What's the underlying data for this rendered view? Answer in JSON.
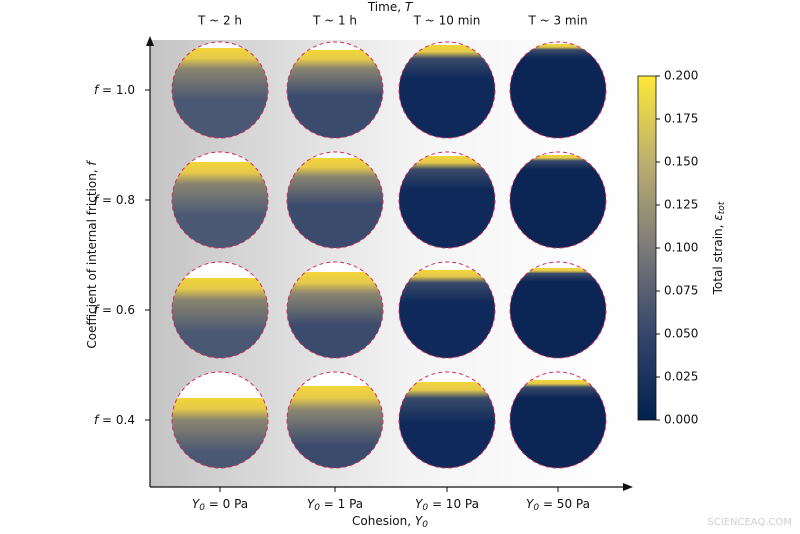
{
  "figure": {
    "top_title": {
      "name": "Time, ",
      "symbol": "T"
    },
    "columns": [
      {
        "time": "T ~ 2 h",
        "symbol": "Y",
        "subscript": "0",
        "label": " = 0 Pa"
      },
      {
        "time": "T ~ 1 h",
        "symbol": "Y",
        "subscript": "0",
        "label": " = 1 Pa"
      },
      {
        "time": "T ~ 10 min",
        "symbol": "Y",
        "subscript": "0",
        "label": " = 10 Pa"
      },
      {
        "time": "T ~ 3 min",
        "symbol": "Y",
        "subscript": "0",
        "label": " = 50 Pa"
      }
    ],
    "rows": [
      {
        "symbol": "f",
        "label": " = 1.0"
      },
      {
        "symbol": "f",
        "label": " = 0.8"
      },
      {
        "symbol": "f",
        "label": " = 0.6"
      },
      {
        "symbol": "f",
        "label": " = 0.4"
      }
    ],
    "y_axis_label": {
      "name": "Coefficient of internal friction, ",
      "symbol": "f"
    },
    "x_axis_label": {
      "name": "Cohesion, ",
      "symbol": "Y",
      "subscript": "0"
    },
    "colorbar": {
      "label": "Total strain, ",
      "symbol": "ε",
      "subscript": "tot",
      "lim": [
        0,
        0.2
      ],
      "ticks": [
        {
          "value": 0,
          "label": "0.000"
        },
        {
          "value": 0.025,
          "label": "0.025"
        },
        {
          "value": 0.05,
          "label": "0.050"
        },
        {
          "value": 0.075,
          "label": "0.075"
        },
        {
          "value": 0.1,
          "label": "0.100"
        },
        {
          "value": 0.125,
          "label": "0.125"
        },
        {
          "value": 0.15,
          "label": "0.150"
        },
        {
          "value": 0.175,
          "label": "0.175"
        },
        {
          "value": 0.2,
          "label": "0.200"
        }
      ]
    },
    "watermark": "SCIENCEAQ.COM"
  }
}
